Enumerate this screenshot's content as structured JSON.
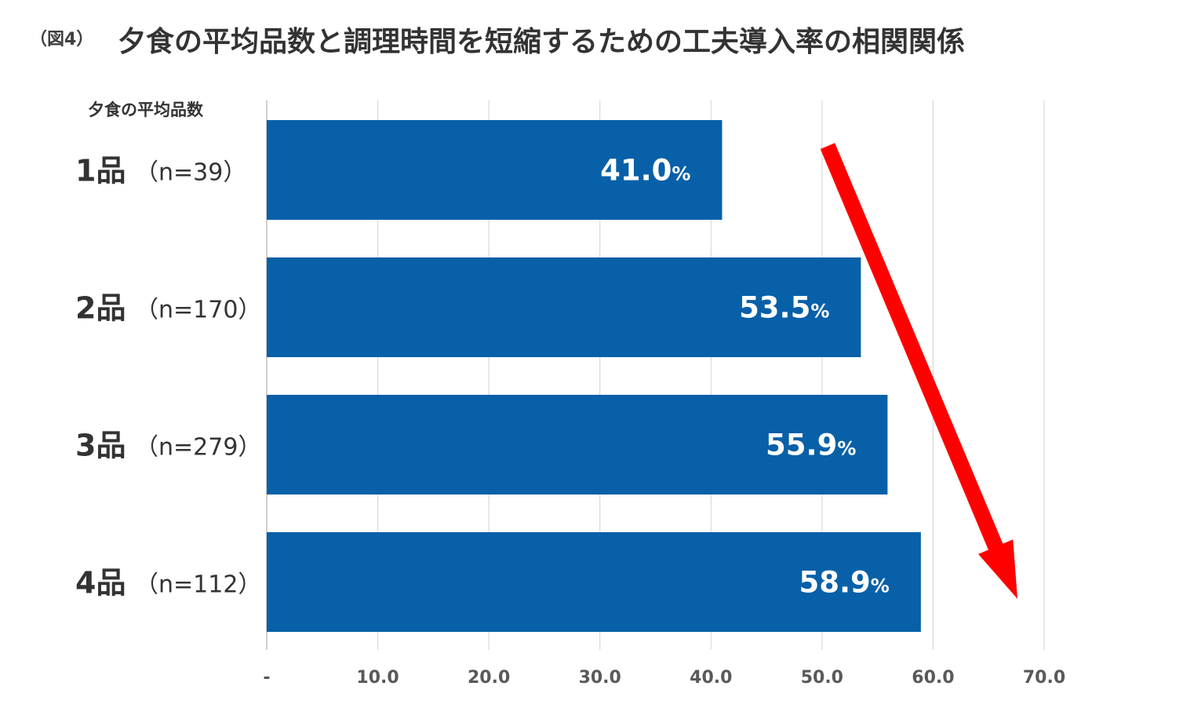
{
  "figure": {
    "label": "（図4）",
    "title": "夕食の平均品数と調理時間を短縮するための工夫導入率の相関関係"
  },
  "colors": {
    "bar": "#0860a8",
    "arrow": "#ff0000",
    "grid": "#d9d9d9"
  },
  "chart_data": {
    "type": "bar",
    "orientation": "horizontal",
    "ylabel": "夕食の平均品数",
    "xlabel": "",
    "categories": [
      {
        "label": "1品",
        "n": "（n=39）"
      },
      {
        "label": "2品",
        "n": "（n=170）"
      },
      {
        "label": "3品",
        "n": "（n=279）"
      },
      {
        "label": "4品",
        "n": "（n=112）"
      }
    ],
    "values": [
      41.0,
      53.5,
      55.9,
      58.9
    ],
    "data_labels": [
      "41.0",
      "53.5",
      "55.9",
      "58.9"
    ],
    "value_unit": "%",
    "xlim": [
      0,
      70
    ],
    "ticks": [
      0,
      10,
      20,
      30,
      40,
      50,
      60,
      70
    ],
    "tick_labels": [
      "-",
      "10.0",
      "20.0",
      "30.0",
      "40.0",
      "50.0",
      "60.0",
      "70.0"
    ],
    "grid": true,
    "trend_arrow": "down-right"
  }
}
